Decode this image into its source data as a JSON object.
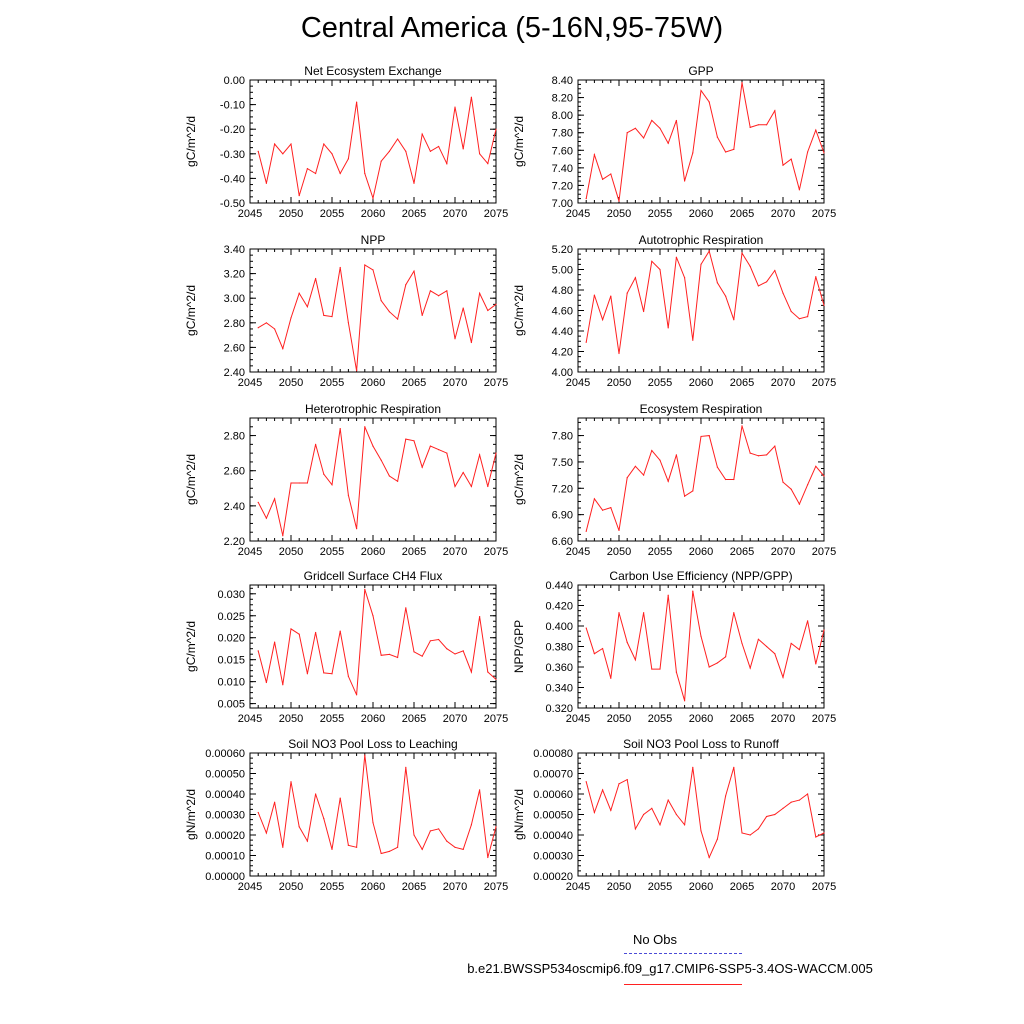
{
  "page": {
    "title": "Central America (5-16N,95-75W)"
  },
  "legend": {
    "obs_label": "No Obs",
    "case_label": "b.e21.BWSSP534oscmip6.f09_g17.CMIP6-SSP5-3.4OS-WACCM.005",
    "obs_color": "#4b4bd6",
    "case_color": "#ff2020"
  },
  "chart_data": [
    {
      "type": "line",
      "title": "Net Ecosystem Exchange",
      "ylabel": "gC/m^2/d",
      "xlabel": "",
      "xlim": [
        2045,
        2075
      ],
      "ylim": [
        -0.5,
        0.0
      ],
      "xticks": [
        2045,
        2050,
        2055,
        2060,
        2065,
        2070,
        2075
      ],
      "yticks": [
        0.0,
        -0.1,
        -0.2,
        -0.3,
        -0.4,
        -0.5
      ],
      "ytick_labels": [
        "0.00",
        "-0.10",
        "-0.20",
        "-0.30",
        "-0.40",
        "-0.50"
      ],
      "x": [
        2046,
        2047,
        2048,
        2049,
        2050,
        2051,
        2052,
        2053,
        2054,
        2055,
        2056,
        2057,
        2058,
        2059,
        2060,
        2061,
        2062,
        2063,
        2064,
        2065,
        2066,
        2067,
        2068,
        2069,
        2070,
        2071,
        2072,
        2073,
        2074,
        2075
      ],
      "series": [
        {
          "name": "b.e21.BWSSP534oscmip6.f09_g17.CMIP6-SSP5-3.4OS-WACCM.005",
          "color": "#ff2020",
          "values": [
            -0.29,
            -0.42,
            -0.26,
            -0.3,
            -0.26,
            -0.47,
            -0.36,
            -0.38,
            -0.26,
            -0.3,
            -0.38,
            -0.32,
            -0.09,
            -0.38,
            -0.48,
            -0.33,
            -0.29,
            -0.24,
            -0.29,
            -0.42,
            -0.22,
            -0.29,
            -0.27,
            -0.34,
            -0.11,
            -0.28,
            -0.07,
            -0.3,
            -0.34,
            -0.2
          ]
        }
      ]
    },
    {
      "type": "line",
      "title": "GPP",
      "ylabel": "gC/m^2/d",
      "xlabel": "",
      "xlim": [
        2045,
        2075
      ],
      "ylim": [
        7.0,
        8.4
      ],
      "xticks": [
        2045,
        2050,
        2055,
        2060,
        2065,
        2070,
        2075
      ],
      "yticks": [
        7.0,
        7.2,
        7.4,
        7.6,
        7.8,
        8.0,
        8.2,
        8.4
      ],
      "ytick_labels": [
        "7.00",
        "7.20",
        "7.40",
        "7.60",
        "7.80",
        "8.00",
        "8.20",
        "8.40"
      ],
      "x": [
        2046,
        2047,
        2048,
        2049,
        2050,
        2051,
        2052,
        2053,
        2054,
        2055,
        2056,
        2057,
        2058,
        2059,
        2060,
        2061,
        2062,
        2063,
        2064,
        2065,
        2066,
        2067,
        2068,
        2069,
        2070,
        2071,
        2072,
        2073,
        2074,
        2075
      ],
      "series": [
        {
          "name": "b.e21.BWSSP534oscmip6.f09_g17.CMIP6-SSP5-3.4OS-WACCM.005",
          "color": "#ff2020",
          "values": [
            7.05,
            7.55,
            7.27,
            7.33,
            7.02,
            7.8,
            7.85,
            7.74,
            7.94,
            7.85,
            7.68,
            7.94,
            7.25,
            7.57,
            8.28,
            8.15,
            7.75,
            7.58,
            7.61,
            8.37,
            7.86,
            7.89,
            7.89,
            8.05,
            7.43,
            7.5,
            7.15,
            7.58,
            7.83,
            7.57
          ]
        }
      ]
    },
    {
      "type": "line",
      "title": "NPP",
      "ylabel": "gC/m^2/d",
      "xlabel": "",
      "xlim": [
        2045,
        2075
      ],
      "ylim": [
        2.4,
        3.4
      ],
      "xticks": [
        2045,
        2050,
        2055,
        2060,
        2065,
        2070,
        2075
      ],
      "yticks": [
        2.4,
        2.6,
        2.8,
        3.0,
        3.2,
        3.4
      ],
      "ytick_labels": [
        "2.40",
        "2.60",
        "2.80",
        "3.00",
        "3.20",
        "3.40"
      ],
      "x": [
        2046,
        2047,
        2048,
        2049,
        2050,
        2051,
        2052,
        2053,
        2054,
        2055,
        2056,
        2057,
        2058,
        2059,
        2060,
        2061,
        2062,
        2063,
        2064,
        2065,
        2066,
        2067,
        2068,
        2069,
        2070,
        2071,
        2072,
        2073,
        2074,
        2075
      ],
      "series": [
        {
          "name": "b.e21.BWSSP534oscmip6.f09_g17.CMIP6-SSP5-3.4OS-WACCM.005",
          "color": "#ff2020",
          "values": [
            2.76,
            2.8,
            2.75,
            2.59,
            2.84,
            3.04,
            2.93,
            3.16,
            2.86,
            2.85,
            3.25,
            2.8,
            2.41,
            3.27,
            3.23,
            2.98,
            2.89,
            2.83,
            3.11,
            3.22,
            2.86,
            3.06,
            3.02,
            3.06,
            2.67,
            2.92,
            2.64,
            3.04,
            2.9,
            2.95
          ]
        }
      ]
    },
    {
      "type": "line",
      "title": "Autotrophic Respiration",
      "ylabel": "gC/m^2/d",
      "xlabel": "",
      "xlim": [
        2045,
        2075
      ],
      "ylim": [
        4.0,
        5.2
      ],
      "xticks": [
        2045,
        2050,
        2055,
        2060,
        2065,
        2070,
        2075
      ],
      "yticks": [
        4.0,
        4.2,
        4.4,
        4.6,
        4.8,
        5.0,
        5.2
      ],
      "ytick_labels": [
        "4.00",
        "4.20",
        "4.40",
        "4.60",
        "4.80",
        "5.00",
        "5.20"
      ],
      "x": [
        2046,
        2047,
        2048,
        2049,
        2050,
        2051,
        2052,
        2053,
        2054,
        2055,
        2056,
        2057,
        2058,
        2059,
        2060,
        2061,
        2062,
        2063,
        2064,
        2065,
        2066,
        2067,
        2068,
        2069,
        2070,
        2071,
        2072,
        2073,
        2074,
        2075
      ],
      "series": [
        {
          "name": "b.e21.BWSSP534oscmip6.f09_g17.CMIP6-SSP5-3.4OS-WACCM.005",
          "color": "#ff2020",
          "values": [
            4.29,
            4.75,
            4.51,
            4.74,
            4.18,
            4.77,
            4.92,
            4.59,
            5.08,
            5.0,
            4.43,
            5.12,
            4.92,
            4.31,
            5.05,
            5.18,
            4.87,
            4.74,
            4.51,
            5.16,
            5.03,
            4.84,
            4.88,
            4.99,
            4.77,
            4.59,
            4.52,
            4.54,
            4.93,
            4.65
          ]
        }
      ]
    },
    {
      "type": "line",
      "title": "Heterotrophic Respiration",
      "ylabel": "gC/m^2/d",
      "xlabel": "",
      "xlim": [
        2045,
        2075
      ],
      "ylim": [
        2.2,
        2.9
      ],
      "xticks": [
        2045,
        2050,
        2055,
        2060,
        2065,
        2070,
        2075
      ],
      "yticks": [
        2.2,
        2.4,
        2.6,
        2.8
      ],
      "ytick_labels": [
        "2.20",
        "2.40",
        "2.60",
        "2.80"
      ],
      "x": [
        2046,
        2047,
        2048,
        2049,
        2050,
        2051,
        2052,
        2053,
        2054,
        2055,
        2056,
        2057,
        2058,
        2059,
        2060,
        2061,
        2062,
        2063,
        2064,
        2065,
        2066,
        2067,
        2068,
        2069,
        2070,
        2071,
        2072,
        2073,
        2074,
        2075
      ],
      "series": [
        {
          "name": "b.e21.BWSSP534oscmip6.f09_g17.CMIP6-SSP5-3.4OS-WACCM.005",
          "color": "#ff2020",
          "values": [
            2.42,
            2.33,
            2.44,
            2.23,
            2.53,
            2.53,
            2.53,
            2.75,
            2.58,
            2.52,
            2.84,
            2.46,
            2.27,
            2.85,
            2.74,
            2.66,
            2.57,
            2.54,
            2.78,
            2.77,
            2.62,
            2.74,
            2.72,
            2.7,
            2.51,
            2.59,
            2.51,
            2.69,
            2.51,
            2.7
          ]
        }
      ]
    },
    {
      "type": "line",
      "title": "Ecosystem Respiration",
      "ylabel": "gC/m^2/d",
      "xlabel": "",
      "xlim": [
        2045,
        2075
      ],
      "ylim": [
        6.6,
        8.0
      ],
      "xticks": [
        2045,
        2050,
        2055,
        2060,
        2065,
        2070,
        2075
      ],
      "yticks": [
        6.6,
        6.9,
        7.2,
        7.5,
        7.8
      ],
      "ytick_labels": [
        "6.60",
        "6.90",
        "7.20",
        "7.50",
        "7.80"
      ],
      "x": [
        2046,
        2047,
        2048,
        2049,
        2050,
        2051,
        2052,
        2053,
        2054,
        2055,
        2056,
        2057,
        2058,
        2059,
        2060,
        2061,
        2062,
        2063,
        2064,
        2065,
        2066,
        2067,
        2068,
        2069,
        2070,
        2071,
        2072,
        2073,
        2074,
        2075
      ],
      "series": [
        {
          "name": "b.e21.BWSSP534oscmip6.f09_g17.CMIP6-SSP5-3.4OS-WACCM.005",
          "color": "#ff2020",
          "values": [
            6.71,
            7.08,
            6.95,
            6.98,
            6.72,
            7.32,
            7.45,
            7.35,
            7.63,
            7.52,
            7.28,
            7.58,
            7.11,
            7.17,
            7.79,
            7.8,
            7.44,
            7.3,
            7.3,
            7.91,
            7.6,
            7.57,
            7.58,
            7.68,
            7.27,
            7.19,
            7.02,
            7.24,
            7.45,
            7.34
          ]
        }
      ]
    },
    {
      "type": "line",
      "title": "Gridcell Surface CH4 Flux",
      "ylabel": "gC/m^2/d",
      "xlabel": "",
      "xlim": [
        2045,
        2075
      ],
      "ylim": [
        0.004,
        0.032
      ],
      "xticks": [
        2045,
        2050,
        2055,
        2060,
        2065,
        2070,
        2075
      ],
      "yticks": [
        0.005,
        0.01,
        0.015,
        0.02,
        0.025,
        0.03
      ],
      "ytick_labels": [
        "0.005",
        "0.010",
        "0.015",
        "0.020",
        "0.025",
        "0.030"
      ],
      "x": [
        2046,
        2047,
        2048,
        2049,
        2050,
        2051,
        2052,
        2053,
        2054,
        2055,
        2056,
        2057,
        2058,
        2059,
        2060,
        2061,
        2062,
        2063,
        2064,
        2065,
        2066,
        2067,
        2068,
        2069,
        2070,
        2071,
        2072,
        2073,
        2074,
        2075
      ],
      "series": [
        {
          "name": "b.e21.BWSSP534oscmip6.f09_g17.CMIP6-SSP5-3.4OS-WACCM.005",
          "color": "#ff2020",
          "values": [
            0.017,
            0.0098,
            0.019,
            0.0093,
            0.022,
            0.0208,
            0.0118,
            0.0212,
            0.012,
            0.0118,
            0.0215,
            0.0112,
            0.007,
            0.031,
            0.025,
            0.016,
            0.0162,
            0.0155,
            0.0268,
            0.0168,
            0.0158,
            0.0193,
            0.0196,
            0.0175,
            0.0163,
            0.017,
            0.0122,
            0.0248,
            0.0122,
            0.0105
          ]
        }
      ]
    },
    {
      "type": "line",
      "title": "Carbon Use Efficiency (NPP/GPP)",
      "ylabel": "NPP/GPP",
      "xlabel": "",
      "xlim": [
        2045,
        2075
      ],
      "ylim": [
        0.32,
        0.44
      ],
      "xticks": [
        2045,
        2050,
        2055,
        2060,
        2065,
        2070,
        2075
      ],
      "yticks": [
        0.32,
        0.34,
        0.36,
        0.38,
        0.4,
        0.42,
        0.44
      ],
      "ytick_labels": [
        "0.320",
        "0.340",
        "0.360",
        "0.380",
        "0.400",
        "0.420",
        "0.440"
      ],
      "x": [
        2046,
        2047,
        2048,
        2049,
        2050,
        2051,
        2052,
        2053,
        2054,
        2055,
        2056,
        2057,
        2058,
        2059,
        2060,
        2061,
        2062,
        2063,
        2064,
        2065,
        2066,
        2067,
        2068,
        2069,
        2070,
        2071,
        2072,
        2073,
        2074,
        2075
      ],
      "series": [
        {
          "name": "b.e21.BWSSP534oscmip6.f09_g17.CMIP6-SSP5-3.4OS-WACCM.005",
          "color": "#ff2020",
          "values": [
            0.398,
            0.373,
            0.378,
            0.349,
            0.413,
            0.384,
            0.367,
            0.413,
            0.358,
            0.358,
            0.43,
            0.355,
            0.327,
            0.434,
            0.39,
            0.36,
            0.364,
            0.37,
            0.413,
            0.383,
            0.359,
            0.387,
            0.38,
            0.373,
            0.35,
            0.383,
            0.377,
            0.405,
            0.363,
            0.396
          ]
        }
      ]
    },
    {
      "type": "line",
      "title": "Soil NO3 Pool Loss to Leaching",
      "ylabel": "gN/m^2/d",
      "xlabel": "",
      "xlim": [
        2045,
        2075
      ],
      "ylim": [
        0.0,
        0.0006
      ],
      "xticks": [
        2045,
        2050,
        2055,
        2060,
        2065,
        2070,
        2075
      ],
      "yticks": [
        0.0,
        0.0001,
        0.0002,
        0.0003,
        0.0004,
        0.0005,
        0.0006
      ],
      "ytick_labels": [
        "0.00000",
        "0.00010",
        "0.00020",
        "0.00030",
        "0.00040",
        "0.00050",
        "0.00060"
      ],
      "x": [
        2046,
        2047,
        2048,
        2049,
        2050,
        2051,
        2052,
        2053,
        2054,
        2055,
        2056,
        2057,
        2058,
        2059,
        2060,
        2061,
        2062,
        2063,
        2064,
        2065,
        2066,
        2067,
        2068,
        2069,
        2070,
        2071,
        2072,
        2073,
        2074,
        2075
      ],
      "series": [
        {
          "name": "b.e21.BWSSP534oscmip6.f09_g17.CMIP6-SSP5-3.4OS-WACCM.005",
          "color": "#ff2020",
          "values": [
            0.00031,
            0.00021,
            0.00036,
            0.00014,
            0.00046,
            0.00024,
            0.00017,
            0.0004,
            0.00028,
            0.00013,
            0.00038,
            0.00015,
            0.00014,
            0.00059,
            0.00026,
            0.00011,
            0.00012,
            0.00014,
            0.00053,
            0.0002,
            0.00013,
            0.00022,
            0.00023,
            0.00017,
            0.00014,
            0.00013,
            0.00025,
            0.00042,
            9e-05,
            0.00024
          ]
        }
      ]
    },
    {
      "type": "line",
      "title": "Soil NO3 Pool Loss to Runoff",
      "ylabel": "gN/m^2/d",
      "xlabel": "",
      "xlim": [
        2045,
        2075
      ],
      "ylim": [
        0.0002,
        0.0008
      ],
      "xticks": [
        2045,
        2050,
        2055,
        2060,
        2065,
        2070,
        2075
      ],
      "yticks": [
        0.0002,
        0.0003,
        0.0004,
        0.0005,
        0.0006,
        0.0007,
        0.0008
      ],
      "ytick_labels": [
        "0.00020",
        "0.00030",
        "0.00040",
        "0.00050",
        "0.00060",
        "0.00070",
        "0.00080"
      ],
      "x": [
        2046,
        2047,
        2048,
        2049,
        2050,
        2051,
        2052,
        2053,
        2054,
        2055,
        2056,
        2057,
        2058,
        2059,
        2060,
        2061,
        2062,
        2063,
        2064,
        2065,
        2066,
        2067,
        2068,
        2069,
        2070,
        2071,
        2072,
        2073,
        2074,
        2075
      ],
      "series": [
        {
          "name": "b.e21.BWSSP534oscmip6.f09_g17.CMIP6-SSP5-3.4OS-WACCM.005",
          "color": "#ff2020",
          "values": [
            0.00066,
            0.00051,
            0.00062,
            0.00052,
            0.00065,
            0.00067,
            0.00043,
            0.0005,
            0.00053,
            0.00045,
            0.00057,
            0.0005,
            0.00045,
            0.00073,
            0.00042,
            0.00029,
            0.00038,
            0.00059,
            0.00073,
            0.00041,
            0.0004,
            0.00043,
            0.00049,
            0.0005,
            0.00053,
            0.00056,
            0.00057,
            0.0006,
            0.00039,
            0.00041
          ]
        }
      ]
    }
  ]
}
